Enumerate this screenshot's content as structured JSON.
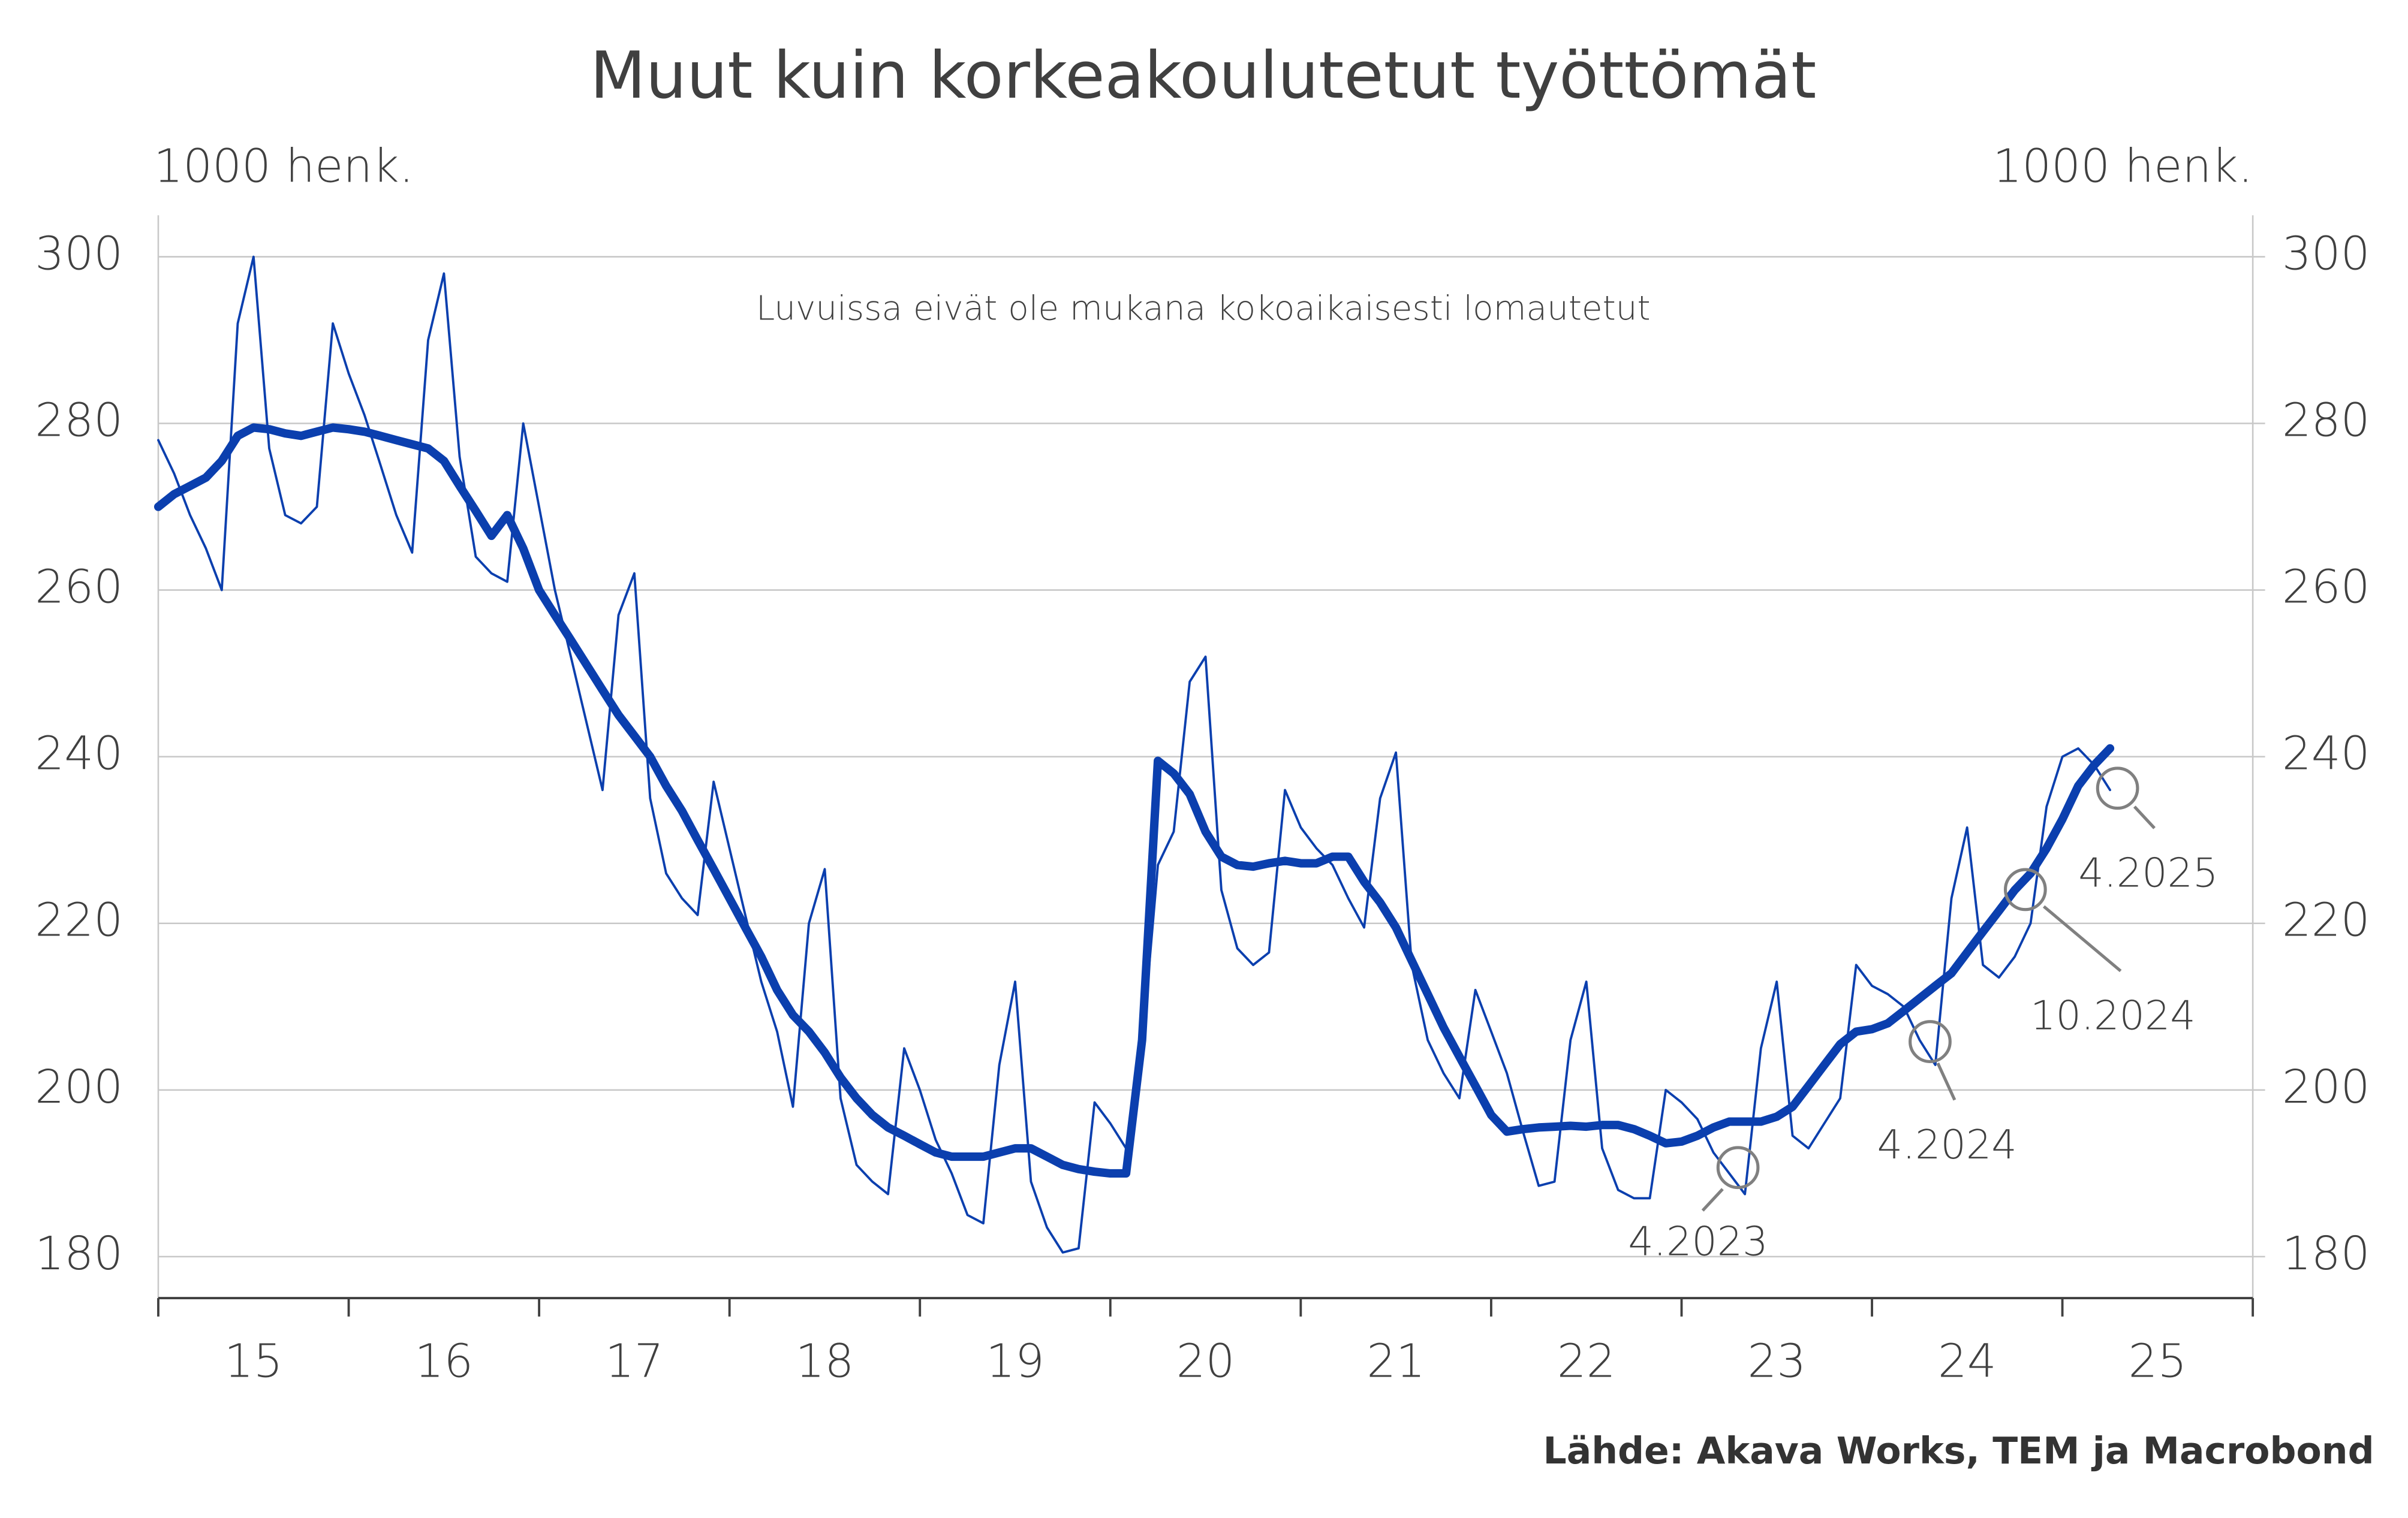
{
  "chart_data": {
    "type": "line",
    "title": "Muut kuin korkeakoulutetut työttömät",
    "subtitle": "Luvuissa eivät ole mukana kokoaikaisesti lomautetut",
    "y_label": "1000 henk.",
    "y2_label": "1000 henk.",
    "source": "Lähde: Akava Works, TEM ja Macrobond",
    "x": [
      15,
      15.083,
      15.167,
      15.25,
      15.333,
      15.417,
      15.5,
      15.583,
      15.667,
      15.75,
      15.833,
      15.917,
      16,
      16.083,
      16.167,
      16.25,
      16.333,
      16.417,
      16.5,
      16.583,
      16.667,
      16.75,
      16.833,
      16.917,
      17,
      17.083,
      17.167,
      17.25,
      17.333,
      17.417,
      17.5,
      17.583,
      17.667,
      17.75,
      17.833,
      17.917,
      18,
      18.083,
      18.167,
      18.25,
      18.333,
      18.417,
      18.5,
      18.583,
      18.667,
      18.75,
      18.833,
      18.917,
      19,
      19.083,
      19.167,
      19.25,
      19.333,
      19.417,
      19.5,
      19.583,
      19.667,
      19.75,
      19.833,
      19.917,
      20,
      20.083,
      20.167,
      20.25,
      20.333,
      20.417,
      20.5,
      20.583,
      20.667,
      20.75,
      20.833,
      20.917,
      21,
      21.083,
      21.167,
      21.25,
      21.333,
      21.417,
      21.5,
      21.583,
      21.667,
      21.75,
      21.833,
      21.917,
      22,
      22.083,
      22.167,
      22.25,
      22.333,
      22.417,
      22.5,
      22.583,
      22.667,
      22.75,
      22.833,
      22.917,
      23,
      23.083,
      23.167,
      23.25,
      23.333,
      23.417,
      23.5,
      23.583,
      23.667,
      23.75,
      23.833,
      23.917,
      24,
      24.083,
      24.167,
      24.25,
      24.333,
      24.417,
      24.5,
      24.583,
      24.667,
      24.75,
      24.833,
      24.917,
      25,
      25.083,
      25.167,
      25.25
    ],
    "series": [
      {
        "color": "#0b3fae",
        "width": "thin",
        "values": [
          278,
          274,
          269,
          265,
          260,
          292,
          300,
          277,
          269,
          268,
          270,
          292,
          286,
          281,
          275,
          269,
          264.5,
          290,
          298,
          276,
          264,
          262,
          261,
          280,
          270,
          260,
          252,
          244,
          236,
          257,
          262,
          235,
          226,
          223,
          221,
          237,
          229,
          221,
          213,
          207,
          198,
          220,
          226.5,
          199,
          191,
          189,
          187.5,
          205,
          200,
          194,
          190,
          185,
          184,
          203,
          213,
          189,
          183.5,
          180.5,
          181,
          198.5,
          196,
          193,
          205,
          227,
          231,
          249,
          252,
          224,
          217,
          215,
          216.5,
          236,
          231.5,
          229,
          227,
          223,
          219.5,
          235,
          240.5,
          215,
          206,
          202,
          199,
          212,
          207,
          202,
          195,
          188.5,
          189,
          206,
          213,
          193,
          188,
          187,
          187,
          200,
          198.5,
          196.5,
          192.5,
          190,
          187.5,
          205,
          213,
          194.5,
          193,
          196,
          199,
          215,
          212.5,
          211.5,
          210,
          206,
          203,
          223,
          231.5,
          215,
          213.5,
          216,
          220,
          234,
          240,
          241,
          239,
          236
        ]
      },
      {
        "color": "#0b3fae",
        "width": "thick",
        "values": [
          270,
          271.5,
          272.5,
          273.5,
          275.5,
          278.5,
          279.5,
          279.3,
          278.8,
          278.5,
          279,
          279.5,
          279.3,
          279,
          278.5,
          278,
          277.5,
          277,
          275.5,
          272.5,
          269.5,
          266.5,
          269,
          265,
          260,
          257,
          254,
          251,
          248,
          245,
          242.5,
          240,
          236.5,
          233.5,
          230,
          226.5,
          223,
          219.5,
          216,
          212,
          209,
          207,
          204.5,
          201.5,
          199,
          197,
          195.5,
          194.5,
          193.5,
          192.5,
          192,
          192,
          192,
          192.5,
          193,
          193,
          192,
          191,
          190.5,
          190.2,
          190,
          190,
          206,
          239.5,
          238,
          235.5,
          231,
          228,
          227,
          226.8,
          227.2,
          227.5,
          227.2,
          227.2,
          228,
          228,
          225,
          222.5,
          219.5,
          215.5,
          211.5,
          207.5,
          204,
          200.5,
          197,
          195,
          195.3,
          195.5,
          195.6,
          195.7,
          195.6,
          195.8,
          195.8,
          195.3,
          194.5,
          193.6,
          193.8,
          194.5,
          195.5,
          196.2,
          196.2,
          196.2,
          196.8,
          198,
          200.5,
          203,
          205.5,
          207,
          207.3,
          208,
          209.5,
          211,
          212.5,
          214,
          216.5,
          219,
          221.5,
          224,
          226,
          229,
          232.5,
          236.5,
          239,
          241
        ]
      }
    ],
    "xlim": [
      15,
      26
    ],
    "xticks": [
      {
        "value": 15.5,
        "label": "15"
      },
      {
        "value": 16.5,
        "label": "16"
      },
      {
        "value": 17.5,
        "label": "17"
      },
      {
        "value": 18.5,
        "label": "18"
      },
      {
        "value": 19.5,
        "label": "19"
      },
      {
        "value": 20.5,
        "label": "20"
      },
      {
        "value": 21.5,
        "label": "21"
      },
      {
        "value": 22.5,
        "label": "22"
      },
      {
        "value": 23.5,
        "label": "23"
      },
      {
        "value": 24.5,
        "label": "24"
      },
      {
        "value": 25.5,
        "label": "25"
      }
    ],
    "ylim": [
      180,
      300
    ],
    "yticks": [
      180,
      200,
      220,
      240,
      260,
      280,
      300
    ],
    "y2lim": [
      180,
      300
    ],
    "y2ticks": [
      180,
      200,
      220,
      240,
      260,
      280,
      300
    ],
    "grid": true,
    "annotations": [
      "4.2023",
      "4.2024",
      "10.2024",
      "4.2025"
    ]
  }
}
